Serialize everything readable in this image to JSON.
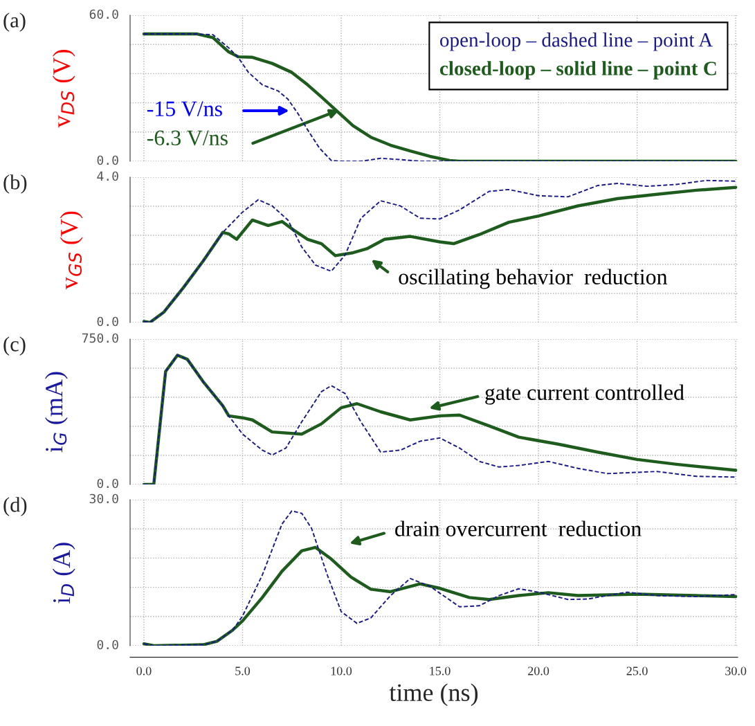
{
  "chart_data": [
    {
      "type": "line",
      "ylabel": "v$_{DS}$ (V)",
      "legend": "top right",
      "grid": true,
      "tick_labels": "y",
      "xlim": [
        -0.7,
        30.1
      ],
      "xticks": [
        0,
        5,
        10,
        15,
        20,
        25,
        30
      ],
      "ylim": [
        0,
        60
      ],
      "yticks": [
        {
          "value": 0,
          "label": "0.0"
        },
        {
          "value": 12,
          "label": null
        },
        {
          "value": 24,
          "label": null
        },
        {
          "value": 36,
          "label": null
        },
        {
          "value": 48,
          "label": null
        },
        {
          "value": 60,
          "label": "60.0"
        }
      ],
      "annotations": [
        "(a)",
        "-15 V/ns",
        {
          "text": "-6.3 V/ns",
          "x": 9.9,
          "y": 21
        }
      ],
      "series": [
        {
          "name": "open-loop – dashed line – point A",
          "color": "#1a1a8c",
          "line_style": "dashed",
          "x": [
            0,
            2.5,
            3.5,
            4.3,
            4.8,
            5.3,
            6,
            6.8,
            7.3,
            7.8,
            8.3,
            8.9,
            9.5,
            10,
            11,
            12,
            13,
            14,
            16,
            30
          ],
          "values": [
            52.3,
            52.3,
            52,
            46.6,
            42.4,
            36.5,
            31.4,
            28.9,
            25.5,
            19.7,
            12.9,
            5.4,
            0.3,
            0,
            0,
            1.2,
            0.7,
            0,
            0,
            0
          ]
        },
        {
          "name": "closed-loop – solid line – point C",
          "color": "#1e5c1e",
          "line_style": "solid",
          "x": [
            0,
            2.7,
            3.5,
            4.3,
            4.8,
            5.5,
            6.5,
            7.5,
            8.3,
            9,
            9.8,
            10.6,
            11.5,
            12.5,
            13.5,
            14.5,
            15.5,
            16,
            30
          ],
          "values": [
            52.3,
            52.3,
            50.8,
            44.9,
            42.9,
            42.7,
            40.2,
            36.5,
            31.4,
            26.4,
            20.5,
            14.6,
            9.9,
            6.6,
            4.2,
            2.0,
            0.3,
            0,
            0
          ]
        }
      ]
    },
    {
      "type": "line",
      "ylabel": "v$_{GS}$ (V)",
      "grid": true,
      "tick_labels": "y",
      "xlim": [
        -0.7,
        30.1
      ],
      "xticks": [
        0,
        5,
        10,
        15,
        20,
        25,
        30
      ],
      "ylim": [
        0,
        4
      ],
      "yticks": [
        {
          "value": 0,
          "label": "0.0"
        },
        {
          "value": 0.8,
          "label": null
        },
        {
          "value": 1.6,
          "label": null
        },
        {
          "value": 2.4,
          "label": null
        },
        {
          "value": 3.2,
          "label": null
        },
        {
          "value": 4,
          "label": "4.0"
        }
      ],
      "annotations": [
        "(b)",
        "oscillating behavior  reduction"
      ],
      "series": [
        {
          "color": "#1a1a8c",
          "line_style": "dashed",
          "x": [
            0,
            0.3,
            1,
            2,
            3,
            4,
            5,
            5.8,
            6.5,
            7.3,
            8,
            8.7,
            9.5,
            10.2,
            11,
            12,
            13,
            14,
            15,
            16,
            17.5,
            18.5,
            20,
            21.5,
            23,
            24,
            25.5,
            27,
            28.5,
            30
          ],
          "values": [
            0.03,
            0.0,
            0.28,
            0.96,
            1.69,
            2.48,
            3.04,
            3.38,
            3.21,
            2.82,
            2.08,
            1.58,
            1.41,
            1.86,
            2.87,
            3.35,
            3.21,
            2.87,
            2.85,
            3.1,
            3.61,
            3.66,
            3.49,
            3.46,
            3.77,
            3.83,
            3.75,
            3.8,
            3.91,
            3.89
          ]
        },
        {
          "color": "#1e5c1e",
          "line_style": "solid",
          "x": [
            0,
            0.3,
            1,
            2,
            3,
            4,
            4.3,
            4.7,
            5.5,
            6.3,
            7,
            7.6,
            8.3,
            9,
            9.7,
            10.6,
            11.3,
            12.2,
            13.5,
            15,
            15.7,
            17,
            18.5,
            20,
            22,
            24,
            26,
            28,
            30
          ],
          "values": [
            0.03,
            0.0,
            0.28,
            0.96,
            1.69,
            2.48,
            2.44,
            2.29,
            2.82,
            2.67,
            2.78,
            2.54,
            2.29,
            2.17,
            1.84,
            1.92,
            2.03,
            2.29,
            2.37,
            2.22,
            2.17,
            2.42,
            2.76,
            2.93,
            3.21,
            3.41,
            3.53,
            3.64,
            3.72
          ]
        }
      ]
    },
    {
      "type": "line",
      "ylabel": "i$_{G}$ (mA)",
      "grid": true,
      "tick_labels": "y",
      "xlim": [
        -0.7,
        30.1
      ],
      "xticks": [
        0,
        5,
        10,
        15,
        20,
        25,
        30
      ],
      "ylim": [
        0,
        750
      ],
      "yticks": [
        {
          "value": 0,
          "label": "0.0"
        },
        {
          "value": 150,
          "label": null
        },
        {
          "value": 300,
          "label": null
        },
        {
          "value": 450,
          "label": null
        },
        {
          "value": 600,
          "label": null
        },
        {
          "value": 750,
          "label": "750.0"
        }
      ],
      "annotations": [
        "(c)",
        "gate current controlled"
      ],
      "series": [
        {
          "color": "#1a1a8c",
          "line_style": "dashed",
          "x": [
            0,
            0.5,
            1.1,
            1.7,
            2.2,
            3,
            4,
            4.3,
            5,
            6,
            6.5,
            7.2,
            8,
            9,
            9.5,
            10.2,
            11,
            12,
            13,
            14,
            15,
            16,
            17,
            18,
            19,
            20.5,
            22,
            23.5,
            26,
            28,
            30
          ],
          "values": [
            0,
            0,
            583,
            667,
            646,
            531,
            406,
            354,
            260,
            177,
            152,
            188,
            323,
            479,
            510,
            469,
            323,
            167,
            177,
            223,
            240,
            188,
            119,
            90,
            98,
            119,
            83,
            56,
            67,
            42,
            38
          ]
        },
        {
          "color": "#1e5c1e",
          "line_style": "solid",
          "x": [
            0,
            0.5,
            1.1,
            1.7,
            2.2,
            3,
            4,
            4.3,
            5,
            5.5,
            6.5,
            8,
            9,
            10,
            10.8,
            12,
            13.5,
            15,
            16,
            17.5,
            19,
            21,
            23,
            25,
            27,
            30
          ],
          "values": [
            0,
            0,
            583,
            667,
            646,
            531,
            406,
            354,
            344,
            333,
            271,
            260,
            313,
            396,
            417,
            375,
            333,
            354,
            358,
            302,
            244,
            208,
            167,
            129,
            104,
            73
          ]
        }
      ]
    },
    {
      "type": "line",
      "ylabel": "i$_{D}$ (A)",
      "xlabel": "time (ns)",
      "grid": true,
      "xlim": [
        -0.7,
        30.1
      ],
      "xticks": [
        {
          "value": 0,
          "label": "0.0"
        },
        {
          "value": 5,
          "label": "5.0"
        },
        {
          "value": 10,
          "label": "10.0"
        },
        {
          "value": 15,
          "label": "15.0"
        },
        {
          "value": 20,
          "label": "20.0"
        },
        {
          "value": 25,
          "label": "25.0"
        },
        {
          "value": 30,
          "label": "30.0"
        }
      ],
      "ylim": [
        0,
        30
      ],
      "yticks": [
        {
          "value": 0,
          "label": "0.0"
        },
        {
          "value": 6,
          "label": null
        },
        {
          "value": 12,
          "label": null
        },
        {
          "value": 18,
          "label": null
        },
        {
          "value": 24,
          "label": null
        },
        {
          "value": 30,
          "label": "30.0"
        }
      ],
      "annotations": [
        "(d)",
        "drain overcurrent  reduction"
      ],
      "series": [
        {
          "color": "#1a1a8c",
          "line_style": "dashed",
          "x": [
            0,
            0.5,
            3,
            3.7,
            4.5,
            5,
            6,
            7,
            7.5,
            8,
            8.5,
            9.3,
            10,
            10.8,
            11.5,
            12.5,
            13.5,
            14.5,
            16,
            17,
            18,
            19,
            20,
            21.5,
            22.5,
            24.5,
            26,
            28,
            30
          ],
          "values": [
            0.4,
            0,
            0.2,
            0.9,
            3.2,
            6.1,
            14.5,
            25.0,
            27.7,
            27.2,
            24.1,
            14.5,
            7.0,
            4.6,
            5.7,
            10.3,
            13.8,
            12.2,
            8.0,
            8.2,
            10.3,
            11.7,
            11.0,
            9.5,
            9.6,
            11.0,
            10.3,
            10.1,
            10.5
          ]
        },
        {
          "color": "#1e5c1e",
          "line_style": "solid",
          "x": [
            0,
            0.5,
            3,
            3.7,
            4.5,
            5,
            6,
            7,
            8,
            8.7,
            9.5,
            10.5,
            11.5,
            12.5,
            14,
            15,
            16.5,
            17.5,
            19,
            20.5,
            22,
            25,
            28,
            30
          ],
          "values": [
            0.4,
            0,
            0.2,
            0.9,
            3.2,
            5.1,
            9.9,
            15.3,
            19.5,
            20.2,
            17.8,
            14.1,
            11.6,
            11.1,
            12.7,
            11.8,
            9.9,
            9.5,
            10.3,
            10.9,
            10.3,
            10.6,
            10.3,
            10.1
          ]
        }
      ]
    }
  ]
}
